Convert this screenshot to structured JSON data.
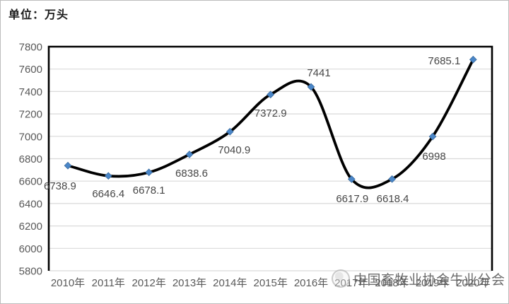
{
  "unit_label": "单位：万头",
  "watermark": {
    "logo_icon": "circular-association-logo",
    "text": "中国畜牧业协会牛业分会"
  },
  "chart_data": {
    "type": "line",
    "title": "单位：万头",
    "categories": [
      "2010年",
      "2011年",
      "2012年",
      "2013年",
      "2014年",
      "2015年",
      "2016年",
      "2017年",
      "2018年",
      "2019年",
      "2020年"
    ],
    "values": [
      6738.9,
      6646.4,
      6678.1,
      6838.6,
      7040.9,
      7372.9,
      7441,
      6617.9,
      6618.4,
      6998,
      7685.1
    ],
    "data_labels": [
      "6738.9",
      "6646.4",
      "6678.1",
      "6838.6",
      "7040.9",
      "7372.9",
      "7441",
      "6617.9",
      "6618.4",
      "6998",
      "7685.1"
    ],
    "xlabel": "",
    "ylabel": "",
    "ylim": [
      5800,
      7800
    ],
    "ytick_step": 200,
    "yticks": [
      5800,
      6000,
      6200,
      6400,
      6600,
      6800,
      7000,
      7200,
      7400,
      7600,
      7800
    ],
    "grid": true,
    "legend_position": "none",
    "smooth": true,
    "marker": "diamond",
    "line_color": "#000000",
    "marker_color": "#4a86c8",
    "marker_edge_color": "#3a6b9e",
    "gridline_color": "#d9d9d9",
    "plot_border_color": "#000000",
    "axis_label_color": "#595959",
    "data_label_color": "#474747"
  }
}
